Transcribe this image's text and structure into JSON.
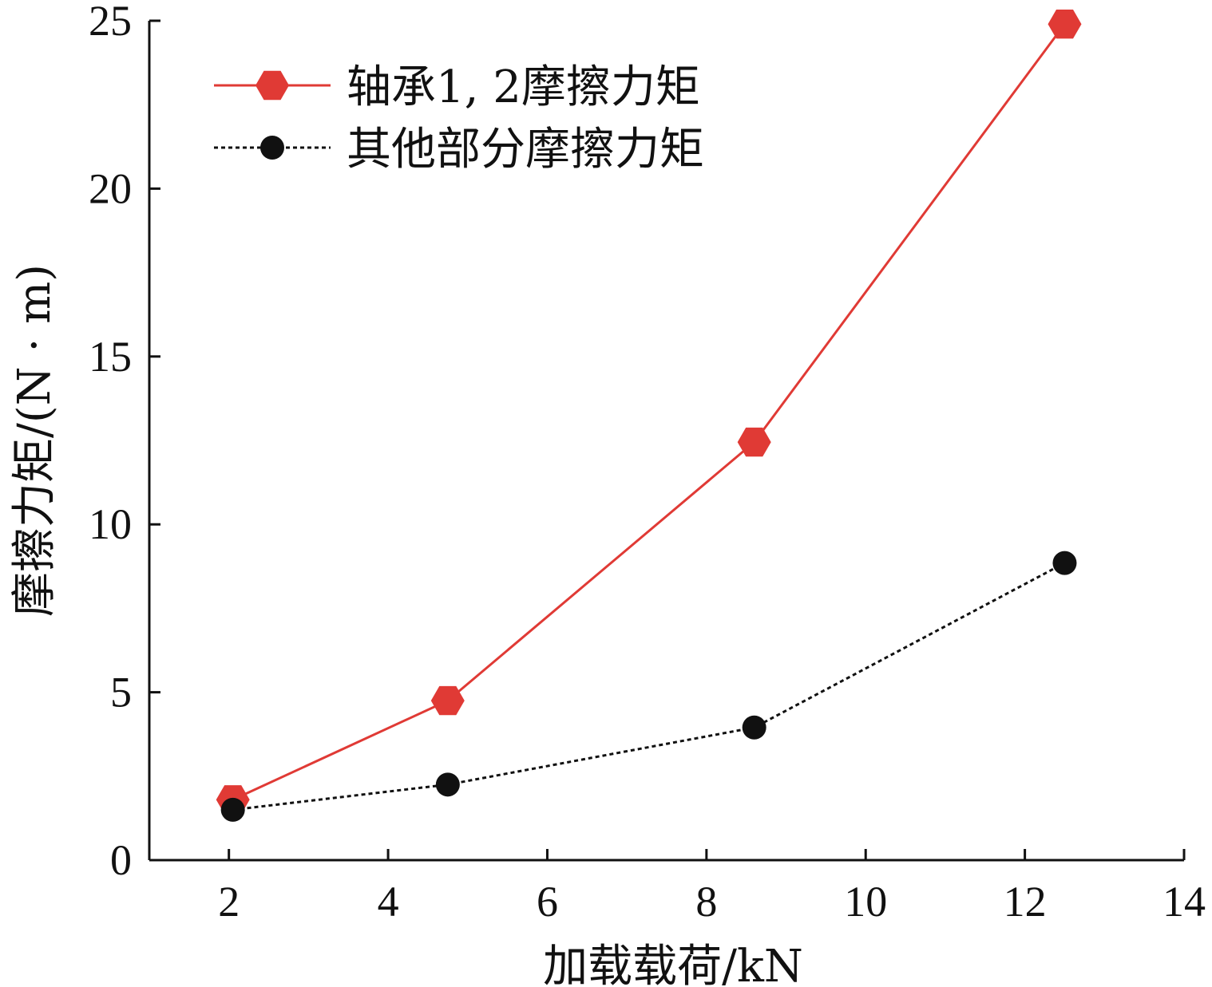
{
  "chart_data": {
    "type": "line",
    "xlabel": "加载载荷/kN",
    "ylabel": "摩擦力矩/(N · m)",
    "xlim": [
      1,
      14
    ],
    "ylim": [
      0,
      25
    ],
    "xticks": [
      2,
      4,
      6,
      8,
      10,
      12,
      14
    ],
    "yticks": [
      0,
      5,
      10,
      15,
      20,
      25
    ],
    "grid": false,
    "legend_position": "top-left",
    "series": [
      {
        "name": "轴承1, 2摩擦力矩",
        "color": "#e03a35",
        "marker": "hexagon",
        "line_style": "solid",
        "x": [
          2.05,
          4.75,
          8.6,
          12.5
        ],
        "y": [
          1.8,
          4.75,
          12.45,
          24.9
        ]
      },
      {
        "name": "其他部分摩擦力矩",
        "color": "#111111",
        "marker": "circle",
        "line_style": "dotted",
        "x": [
          2.05,
          4.75,
          8.6,
          12.5
        ],
        "y": [
          1.5,
          2.25,
          3.95,
          8.85
        ]
      }
    ]
  }
}
